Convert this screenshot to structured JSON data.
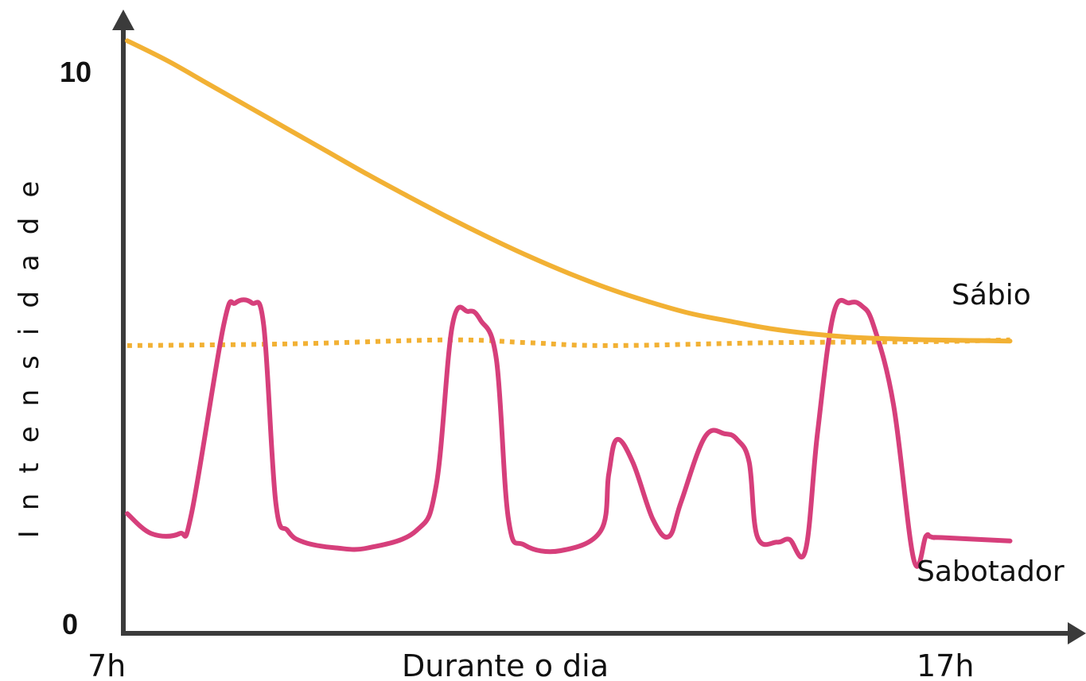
{
  "chart_data": {
    "type": "line",
    "ylabel": "Intensidade",
    "xlabel": "Durante o dia",
    "x_tick_labels": [
      "7h",
      "17h"
    ],
    "y_tick_labels": [
      "0",
      "10"
    ],
    "ylim": [
      0,
      10
    ],
    "xlim": [
      7,
      18.6
    ],
    "grid": false,
    "legend": "none",
    "colors": {
      "sabio": "#f2b134",
      "reference": "#f2b134",
      "sabotador": "#d63f7b",
      "axis": "#3b3b3b"
    },
    "series": [
      {
        "name": "Sábio",
        "style": "solid",
        "x": [
          7,
          7.5,
          8,
          8.5,
          9,
          9.5,
          10,
          10.5,
          11,
          11.5,
          12,
          12.5,
          13,
          13.5,
          14,
          14.5,
          15,
          15.5,
          16,
          16.5,
          17,
          17.5,
          18
        ],
        "y": [
          10.4,
          10.05,
          9.65,
          9.25,
          8.85,
          8.45,
          8.05,
          7.67,
          7.3,
          6.95,
          6.62,
          6.32,
          6.05,
          5.82,
          5.62,
          5.48,
          5.35,
          5.26,
          5.2,
          5.17,
          5.15,
          5.14,
          5.13
        ]
      },
      {
        "style": "dotted",
        "x": [
          7,
          9,
          11,
          12,
          13,
          15,
          17,
          18
        ],
        "y": [
          5.05,
          5.08,
          5.15,
          5.1,
          5.05,
          5.1,
          5.12,
          5.15
        ]
      },
      {
        "name": "Sabotador",
        "style": "solid",
        "x": [
          7,
          7.3,
          7.65,
          7.8,
          8.2,
          8.35,
          8.55,
          8.7,
          8.85,
          9.0,
          9.2,
          9.6,
          10.0,
          10.6,
          10.85,
          11.05,
          11.25,
          11.4,
          11.6,
          11.75,
          11.95,
          12.4,
          12.9,
          13.0,
          13.1,
          13.3,
          13.55,
          13.75,
          13.9,
          14.2,
          14.45,
          14.6,
          14.75,
          14.85,
          15.1,
          15.25,
          15.45,
          15.6,
          15.8,
          16.0,
          16.15,
          16.3,
          16.55,
          16.8,
          16.95,
          17.0,
          17.05,
          17.15,
          18.0
        ],
        "y": [
          2.1,
          1.75,
          1.75,
          2.1,
          5.4,
          5.8,
          5.8,
          5.4,
          2.3,
          1.8,
          1.6,
          1.5,
          1.5,
          1.8,
          2.6,
          5.4,
          5.65,
          5.5,
          4.8,
          2.0,
          1.55,
          1.45,
          1.8,
          2.8,
          3.4,
          3.0,
          2.0,
          1.7,
          2.3,
          3.45,
          3.5,
          3.4,
          3.0,
          1.7,
          1.6,
          1.65,
          1.45,
          3.5,
          5.6,
          5.8,
          5.75,
          5.4,
          4.0,
          1.3,
          1.7,
          1.7,
          1.68,
          1.68,
          1.62
        ]
      }
    ],
    "annotations": [
      "Sábio",
      "Sabotador"
    ]
  }
}
